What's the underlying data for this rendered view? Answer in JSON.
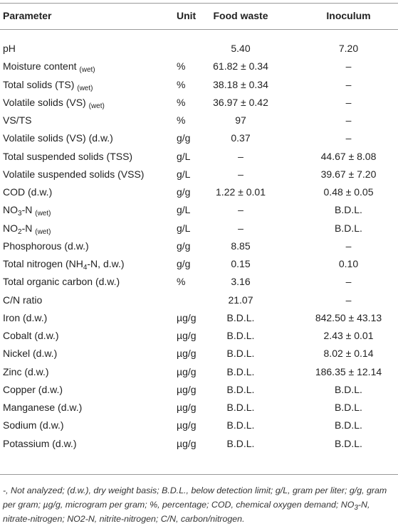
{
  "table": {
    "header": [
      "Parameter",
      "Unit",
      "Food waste",
      "Inoculum"
    ],
    "rows": [
      {
        "parameter": [
          "pH"
        ],
        "unit": null,
        "food_waste": "5.40",
        "inoculum": "7.20"
      },
      {
        "parameter": [
          "Moisture content ",
          {
            "sub": "(wet)"
          }
        ],
        "unit": "%",
        "food_waste": "61.82 ± 0.34",
        "inoculum": "–"
      },
      {
        "parameter": [
          "Total solids (TS) ",
          {
            "sub": "(wet)"
          }
        ],
        "unit": "%",
        "food_waste": "38.18 ± 0.34",
        "inoculum": "–"
      },
      {
        "parameter": [
          "Volatile solids (VS) ",
          {
            "sub": "(wet)"
          }
        ],
        "unit": "%",
        "food_waste": "36.97 ± 0.42",
        "inoculum": "–"
      },
      {
        "parameter": [
          "VS/TS"
        ],
        "unit": "%",
        "food_waste": "97",
        "inoculum": "–"
      },
      {
        "parameter": [
          "Volatile solids (VS) (d.w.)"
        ],
        "unit": "g/g",
        "food_waste": "0.37",
        "inoculum": "–"
      },
      {
        "parameter": [
          "Total suspended solids (TSS)"
        ],
        "unit": "g/L",
        "food_waste": "–",
        "inoculum": "44.67 ± 8.08"
      },
      {
        "parameter": [
          "Volatile suspended solids (VSS)"
        ],
        "unit": "g/L",
        "food_waste": "–",
        "inoculum": "39.67 ± 7.20"
      },
      {
        "parameter": [
          "COD (d.w.)"
        ],
        "unit": "g/g",
        "food_waste": "1.22 ± 0.01",
        "inoculum": "0.48 ± 0.05"
      },
      {
        "parameter": [
          "NO",
          {
            "sub": "3"
          },
          "-N ",
          {
            "sub": "(wet)"
          }
        ],
        "unit": "g/L",
        "food_waste": "–",
        "inoculum": "B.D.L."
      },
      {
        "parameter": [
          "NO",
          {
            "sub": "2"
          },
          "-N ",
          {
            "sub": "(wet)"
          }
        ],
        "unit": "g/L",
        "food_waste": "–",
        "inoculum": "B.D.L."
      },
      {
        "parameter": [
          "Phosphorous (d.w.)"
        ],
        "unit": "g/g",
        "food_waste": "8.85",
        "inoculum": "–"
      },
      {
        "parameter": [
          "Total nitrogen (NH",
          {
            "sub": "4"
          },
          "-N, d.w.)"
        ],
        "unit": "g/g",
        "food_waste": "0.15",
        "inoculum": "0.10"
      },
      {
        "parameter": [
          "Total organic carbon (d.w.)"
        ],
        "unit": "%",
        "food_waste": "3.16",
        "inoculum": "–"
      },
      {
        "parameter": [
          "C/N ratio"
        ],
        "unit": null,
        "food_waste": "21.07",
        "inoculum": "–"
      },
      {
        "parameter": [
          "Iron (d.w.)"
        ],
        "unit": "µg/g",
        "food_waste": "B.D.L.",
        "inoculum": "842.50 ± 43.13"
      },
      {
        "parameter": [
          "Cobalt (d.w.)"
        ],
        "unit": "µg/g",
        "food_waste": "B.D.L.",
        "inoculum": "2.43 ± 0.01"
      },
      {
        "parameter": [
          "Nickel (d.w.)"
        ],
        "unit": "µg/g",
        "food_waste": "B.D.L.",
        "inoculum": "8.02 ± 0.14"
      },
      {
        "parameter": [
          "Zinc (d.w.)"
        ],
        "unit": "µg/g",
        "food_waste": "B.D.L.",
        "inoculum": "186.35 ± 12.14"
      },
      {
        "parameter": [
          "Copper (d.w.)"
        ],
        "unit": "µg/g",
        "food_waste": "B.D.L.",
        "inoculum": "B.D.L."
      },
      {
        "parameter": [
          "Manganese (d.w.)"
        ],
        "unit": "µg/g",
        "food_waste": "B.D.L.",
        "inoculum": "B.D.L."
      },
      {
        "parameter": [
          "Sodium (d.w.)"
        ],
        "unit": "µg/g",
        "food_waste": "B.D.L.",
        "inoculum": "B.D.L."
      },
      {
        "parameter": [
          "Potassium (d.w.)"
        ],
        "unit": "µg/g",
        "food_waste": "B.D.L.",
        "inoculum": "B.D.L."
      }
    ],
    "footnote": [
      "-, Not analyzed; (d.w.), dry weight basis; B.D.L., below detection limit; g/L, gram per liter; g/g, gram per gram; µg/g, microgram per gram; %, percentage; COD, chemical oxygen demand; NO",
      {
        "sub": "3"
      },
      "-N, nitrate-nitrogen; NO2-N, nitrite-nitrogen; C/N, carbon/nitrogen."
    ]
  }
}
